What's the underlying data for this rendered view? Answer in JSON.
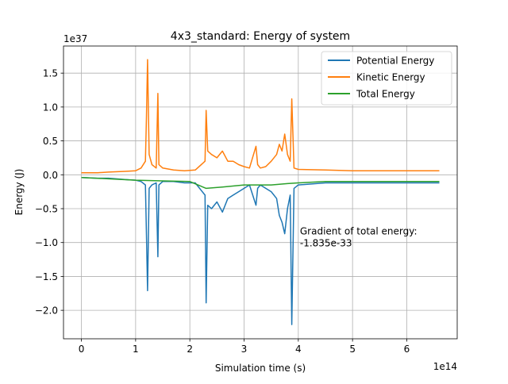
{
  "chart_data": {
    "type": "line",
    "title": "4x3_standard: Energy of system",
    "xlabel": "Simulation time (s)",
    "ylabel": "Energy (J)",
    "x_offset_label": "1e14",
    "y_offset_label": "1e37",
    "xlim": [
      -0.33,
      6.93
    ],
    "ylim": [
      -2.42,
      1.9
    ],
    "x_ticks": [
      0,
      1,
      2,
      3,
      4,
      5,
      6
    ],
    "x_tick_labels": [
      "0",
      "1",
      "2",
      "3",
      "4",
      "5",
      "6"
    ],
    "y_ticks": [
      1.5,
      1.0,
      0.5,
      0.0,
      -0.5,
      -1.0,
      -1.5,
      -2.0
    ],
    "y_tick_labels": [
      "1.5",
      "1.0",
      "0.5",
      "0.0",
      "−0.5",
      "−1.0",
      "−1.5",
      "−2.0"
    ],
    "grid": true,
    "legend_position": "top-right",
    "annotation": {
      "lines": [
        "Gradient of total energy:",
        "-1.835e-33"
      ],
      "x": 4.03,
      "y": -0.88
    },
    "series": [
      {
        "name": "Potential Energy",
        "color": "#1f77b4",
        "x": [
          0,
          0.3,
          0.5,
          0.8,
          1.0,
          1.1,
          1.18,
          1.2,
          1.22,
          1.25,
          1.3,
          1.38,
          1.41,
          1.43,
          1.5,
          1.7,
          1.9,
          2.1,
          2.28,
          2.3,
          2.33,
          2.4,
          2.5,
          2.6,
          2.7,
          2.8,
          2.9,
          3.0,
          3.1,
          3.22,
          3.25,
          3.3,
          3.4,
          3.5,
          3.6,
          3.65,
          3.7,
          3.75,
          3.8,
          3.85,
          3.88,
          3.92,
          4.0,
          4.5,
          5.0,
          5.5,
          6.0,
          6.6
        ],
        "y": [
          -0.04,
          -0.05,
          -0.05,
          -0.07,
          -0.08,
          -0.1,
          -0.15,
          -0.88,
          -1.71,
          -0.2,
          -0.15,
          -0.12,
          -1.21,
          -0.15,
          -0.1,
          -0.1,
          -0.12,
          -0.12,
          -0.3,
          -1.89,
          -0.45,
          -0.5,
          -0.4,
          -0.55,
          -0.35,
          -0.3,
          -0.25,
          -0.2,
          -0.15,
          -0.45,
          -0.2,
          -0.15,
          -0.2,
          -0.25,
          -0.35,
          -0.6,
          -0.7,
          -0.87,
          -0.5,
          -0.3,
          -2.21,
          -0.2,
          -0.15,
          -0.12,
          -0.12,
          -0.12,
          -0.12,
          -0.12
        ]
      },
      {
        "name": "Kinetic Energy",
        "color": "#ff7f0e",
        "x": [
          0,
          0.3,
          0.5,
          0.8,
          1.0,
          1.1,
          1.18,
          1.2,
          1.22,
          1.25,
          1.3,
          1.38,
          1.41,
          1.43,
          1.5,
          1.7,
          1.9,
          2.1,
          2.28,
          2.3,
          2.33,
          2.4,
          2.5,
          2.6,
          2.7,
          2.8,
          2.9,
          3.0,
          3.1,
          3.22,
          3.25,
          3.3,
          3.4,
          3.5,
          3.6,
          3.65,
          3.7,
          3.75,
          3.8,
          3.85,
          3.88,
          3.92,
          4.0,
          4.5,
          5.0,
          5.5,
          6.0,
          6.6
        ],
        "y": [
          0.03,
          0.03,
          0.04,
          0.05,
          0.06,
          0.1,
          0.2,
          0.85,
          1.7,
          0.3,
          0.15,
          0.1,
          1.2,
          0.15,
          0.1,
          0.07,
          0.06,
          0.07,
          0.2,
          0.95,
          0.35,
          0.3,
          0.25,
          0.35,
          0.2,
          0.2,
          0.15,
          0.12,
          0.1,
          0.42,
          0.15,
          0.1,
          0.12,
          0.2,
          0.3,
          0.45,
          0.35,
          0.6,
          0.3,
          0.2,
          1.12,
          0.1,
          0.08,
          0.07,
          0.06,
          0.06,
          0.06,
          0.06
        ]
      },
      {
        "name": "Total Energy",
        "color": "#2ca02c",
        "x": [
          0,
          0.5,
          1.0,
          1.5,
          2.0,
          2.3,
          2.6,
          3.0,
          3.5,
          3.8,
          4.0,
          4.5,
          5.0,
          5.5,
          6.0,
          6.6
        ],
        "y": [
          -0.04,
          -0.06,
          -0.08,
          -0.09,
          -0.1,
          -0.2,
          -0.18,
          -0.15,
          -0.15,
          -0.13,
          -0.12,
          -0.1,
          -0.1,
          -0.1,
          -0.1,
          -0.1
        ]
      }
    ]
  }
}
